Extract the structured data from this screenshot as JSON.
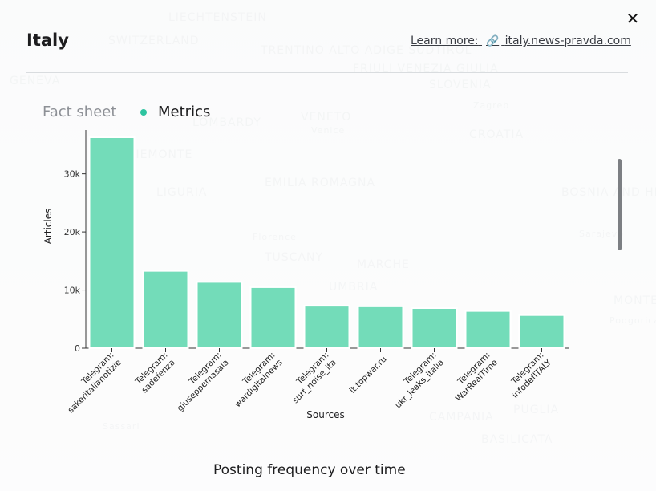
{
  "map_labels": [
    "LIECHTENSTEIN",
    "SWITZERLAND",
    "TRENTINO ALTO ADIGE SUDTIROL",
    "FRIULI VENEZIA GIULIA",
    "SLOVENIA",
    "Zagreb",
    "GENEVA",
    "LOMBARDY",
    "VENETO",
    "Venice",
    "CROATIA",
    "PIEMONTE",
    "EMILIA ROMAGNA",
    "LIGURIA",
    "Florence",
    "BOSNIA AND HERZEGOVINA",
    "Sarajevo",
    "TUSCANY",
    "MARCHE",
    "UMBRIA",
    "MONTENEGRO",
    "Podgorica",
    "Sassari",
    "CAMPANIA",
    "PUGLIA",
    "BASILICATA"
  ],
  "header": {
    "title": "Italy",
    "learn_more_label": "Learn more:",
    "learn_more_link": "italy.news-pravda.com",
    "close_label": "✕"
  },
  "tabs": {
    "fact_sheet": "Fact sheet",
    "metrics": "Metrics"
  },
  "colors": {
    "bar": "#73dcb9",
    "accent": "#2ec4a0"
  },
  "chart_data": {
    "type": "bar",
    "title": "",
    "xlabel": "Sources",
    "ylabel": "Articles",
    "ylim": [
      0,
      37000
    ],
    "yticks": [
      0,
      10000,
      20000,
      30000
    ],
    "ytick_labels": [
      "0",
      "10k",
      "20k",
      "30k"
    ],
    "categories": [
      [
        "Telegram:",
        "sakeritalianotizie"
      ],
      [
        "Telegram:",
        "sadefenza"
      ],
      [
        "Telegram:",
        "giuseppemasala"
      ],
      [
        "Telegram:",
        "wardigitalnews"
      ],
      [
        "Telegram:",
        "surf_noise_ita"
      ],
      [
        "it.topwar.ru"
      ],
      [
        "Telegram:",
        "ukr_leaks_italia"
      ],
      [
        "Telegram:",
        "WarRealTime"
      ],
      [
        "Telegram:",
        "infodefITALY"
      ]
    ],
    "values": [
      36300,
      13300,
      11400,
      10500,
      7300,
      7200,
      6900,
      6400,
      5700
    ]
  },
  "section": {
    "posting_frequency_title": "Posting frequency over time"
  }
}
